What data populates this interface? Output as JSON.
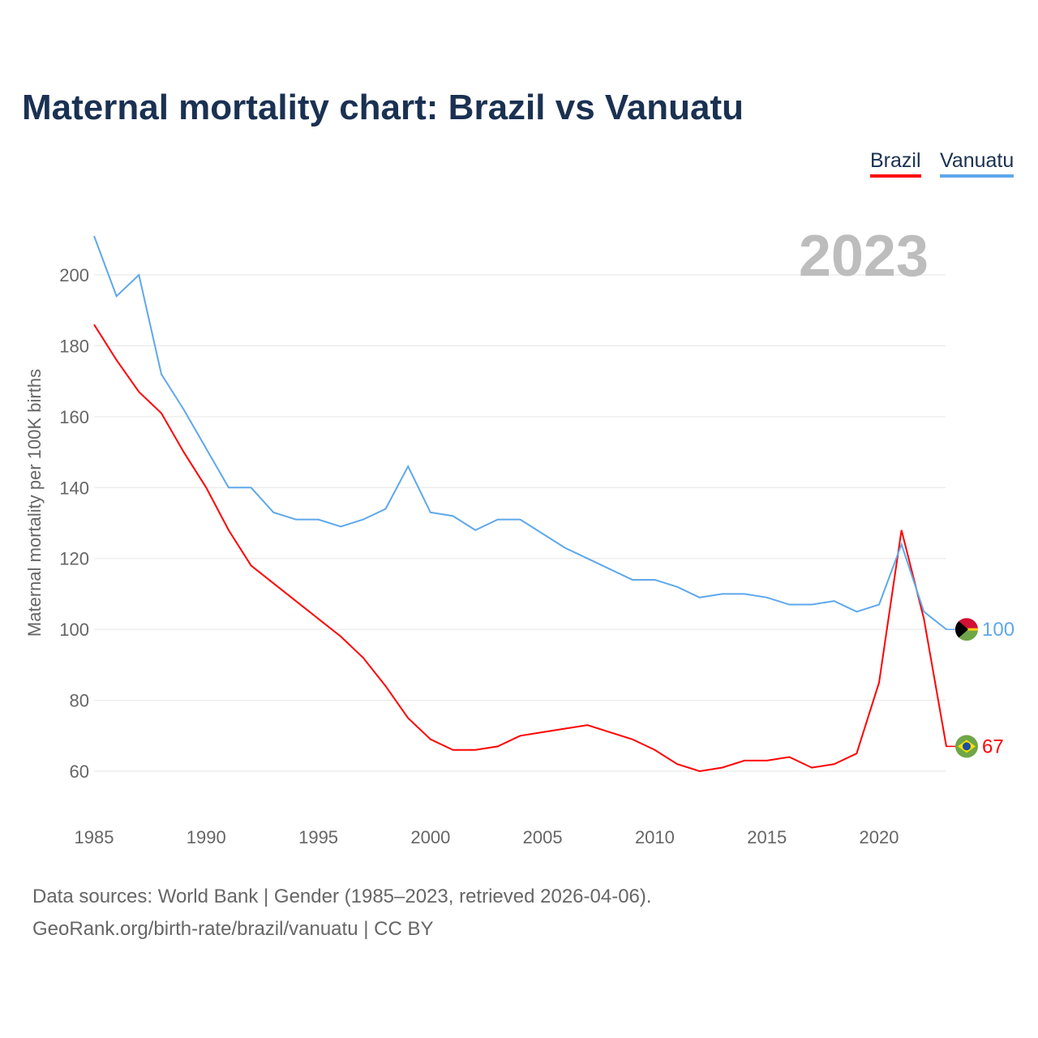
{
  "chart_data": {
    "type": "line",
    "title": "Maternal mortality chart: Brazil vs Vanuatu",
    "ylabel": "Maternal mortality per 100K births",
    "xlabel": "",
    "year_label": "2023",
    "xlim": [
      1985,
      2023
    ],
    "ylim": [
      60,
      200
    ],
    "yticks": [
      60,
      80,
      100,
      120,
      140,
      160,
      180,
      200
    ],
    "xticks": [
      1985,
      1990,
      1995,
      2000,
      2005,
      2010,
      2015,
      2020
    ],
    "x": [
      1985,
      1986,
      1987,
      1988,
      1989,
      1990,
      1991,
      1992,
      1993,
      1994,
      1995,
      1996,
      1997,
      1998,
      1999,
      2000,
      2001,
      2002,
      2003,
      2004,
      2005,
      2006,
      2007,
      2008,
      2009,
      2010,
      2011,
      2012,
      2013,
      2014,
      2015,
      2016,
      2017,
      2018,
      2019,
      2020,
      2021,
      2022,
      2023
    ],
    "series": [
      {
        "name": "Brazil",
        "color": "#ff0000",
        "end_label": "67",
        "values": [
          186,
          176,
          167,
          161,
          150,
          140,
          128,
          118,
          113,
          108,
          103,
          98,
          92,
          84,
          75,
          69,
          66,
          66,
          67,
          70,
          71,
          72,
          73,
          71,
          69,
          66,
          62,
          60,
          61,
          63,
          63,
          64,
          61,
          62,
          65,
          85,
          128,
          103,
          67
        ]
      },
      {
        "name": "Vanuatu",
        "color": "#5ea8ec",
        "end_label": "100",
        "values": [
          211,
          194,
          200,
          172,
          162,
          151,
          140,
          140,
          133,
          131,
          131,
          129,
          131,
          134,
          146,
          133,
          132,
          128,
          131,
          131,
          127,
          123,
          120,
          117,
          114,
          114,
          112,
          109,
          110,
          110,
          109,
          107,
          107,
          108,
          105,
          107,
          124,
          105,
          100
        ]
      }
    ],
    "legend": "top-right",
    "grid": true
  },
  "footer": {
    "line1": "Data sources: World Bank | Gender (1985–2023, retrieved 2026-04-06).",
    "line2": "GeoRank.org/birth-rate/brazil/vanuatu | CC BY"
  }
}
